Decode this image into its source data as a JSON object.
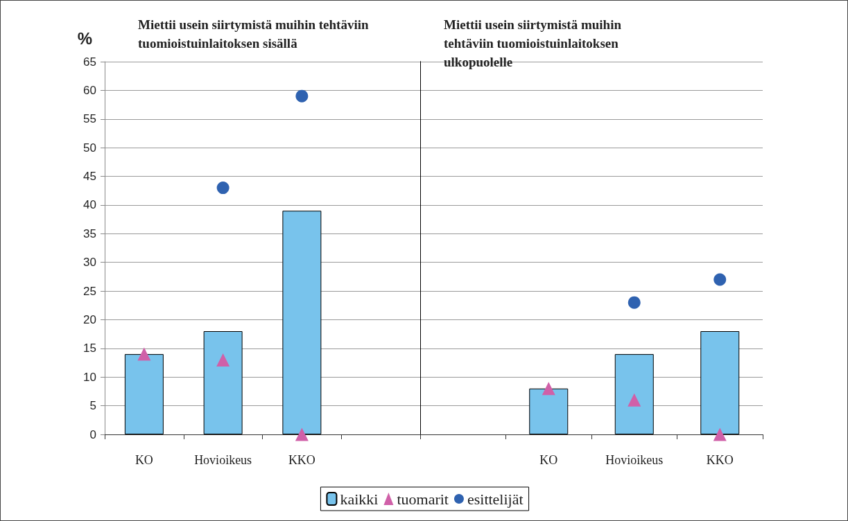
{
  "chart_data": [
    {
      "type": "bar",
      "title": "Miettii usein siirtymistä muihin tehtäviin tuomioistuinlaitoksen sisällä",
      "ylabel": "%",
      "categories": [
        "KO",
        "Hovioikeus",
        "KKO",
        null
      ],
      "series": [
        {
          "name": "kaikki",
          "color": "#78c3ec",
          "values": [
            14,
            18,
            39,
            null
          ]
        },
        {
          "name": "tuomarit",
          "type": "scatter",
          "marker": "triangle",
          "color": "#d060a8",
          "values": [
            14,
            13,
            0,
            null
          ]
        },
        {
          "name": "esittelijät",
          "type": "scatter",
          "marker": "circle",
          "color": "#2f62b0",
          "values": [
            null,
            43,
            59,
            null
          ]
        }
      ],
      "ylim": [
        0,
        65
      ],
      "yticks": [
        0,
        5,
        10,
        15,
        20,
        25,
        30,
        35,
        40,
        45,
        50,
        55,
        60,
        65
      ],
      "grid": "y",
      "legend": "bottom"
    },
    {
      "type": "bar",
      "title": "Miettii usein siirtymistä muihin tehtäviin tuomioistuinlaitoksen ulkopuolelle",
      "categories": [
        null,
        "KO",
        "Hovioikeus",
        "KKO"
      ],
      "series": [
        {
          "color": "#78c3ec",
          "values": [
            null,
            8,
            14,
            18
          ]
        },
        {
          "type": "scatter",
          "marker": "triangle",
          "color": "#d060a8",
          "values": [
            null,
            8,
            6,
            0
          ]
        },
        {
          "type": "scatter",
          "marker": "circle",
          "color": "#2f62b0",
          "values": [
            null,
            null,
            23,
            27
          ]
        }
      ],
      "ylim": [
        0,
        65
      ],
      "yticks": [
        0,
        5,
        10,
        15,
        20,
        25,
        30,
        35,
        40,
        45,
        50,
        55,
        60,
        65
      ],
      "grid": "y",
      "tick_labels": "x"
    }
  ]
}
